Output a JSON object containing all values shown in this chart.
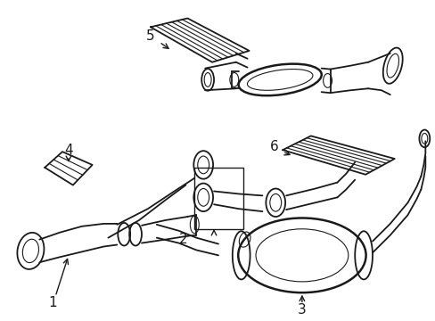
{
  "background_color": "#ffffff",
  "line_color": "#1a1a1a",
  "figsize": [
    4.89,
    3.6
  ],
  "dpi": 100,
  "lw_thin": 0.8,
  "lw_med": 1.3,
  "lw_thick": 1.8
}
